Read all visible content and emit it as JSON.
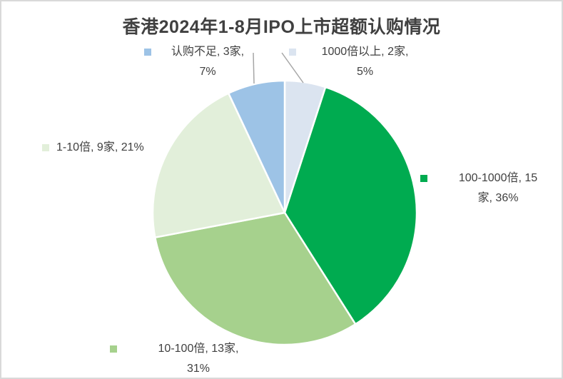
{
  "chart_data": {
    "type": "pie",
    "title": "香港2024年1-8月IPO上市超额认购情况",
    "legend_position": "data-labels",
    "direction": "clockwise",
    "start_angle_deg": 0,
    "unit": "家",
    "total_percent": 100,
    "slices": [
      {
        "id": "over1000x",
        "label": "1000倍以上",
        "count": 2,
        "percent": 5,
        "color": "#DBE4F0",
        "display": {
          "line1": "1000倍以上, 2家,",
          "line2": "5%"
        }
      },
      {
        "id": "x100to1000",
        "label": "100-1000倍",
        "count": 15,
        "percent": 36,
        "color": "#00AB50",
        "display": {
          "line1": "100-1000倍, 15",
          "line2": "家, 36%"
        }
      },
      {
        "id": "x10to100",
        "label": "10-100倍",
        "count": 13,
        "percent": 31,
        "color": "#A6D18D",
        "display": {
          "line1": "10-100倍, 13家,",
          "line2": "31%"
        }
      },
      {
        "id": "x1to10",
        "label": "1-10倍",
        "count": 9,
        "percent": 21,
        "color": "#E2EFDA",
        "display": {
          "line1": "1-10倍, 9家, 21%",
          "line2": ""
        }
      },
      {
        "id": "undersubscribed",
        "label": "认购不足",
        "count": 3,
        "percent": 7,
        "color": "#9DC3E6",
        "display": {
          "line1": "认购不足, 3家,",
          "line2": "7%"
        }
      }
    ],
    "colors": {
      "title_text": "#404040",
      "label_text": "#404040",
      "leader_line": "#A6A6A6",
      "slice_border": "#FFFFFF",
      "chart_border": "#D9D9D9"
    }
  }
}
